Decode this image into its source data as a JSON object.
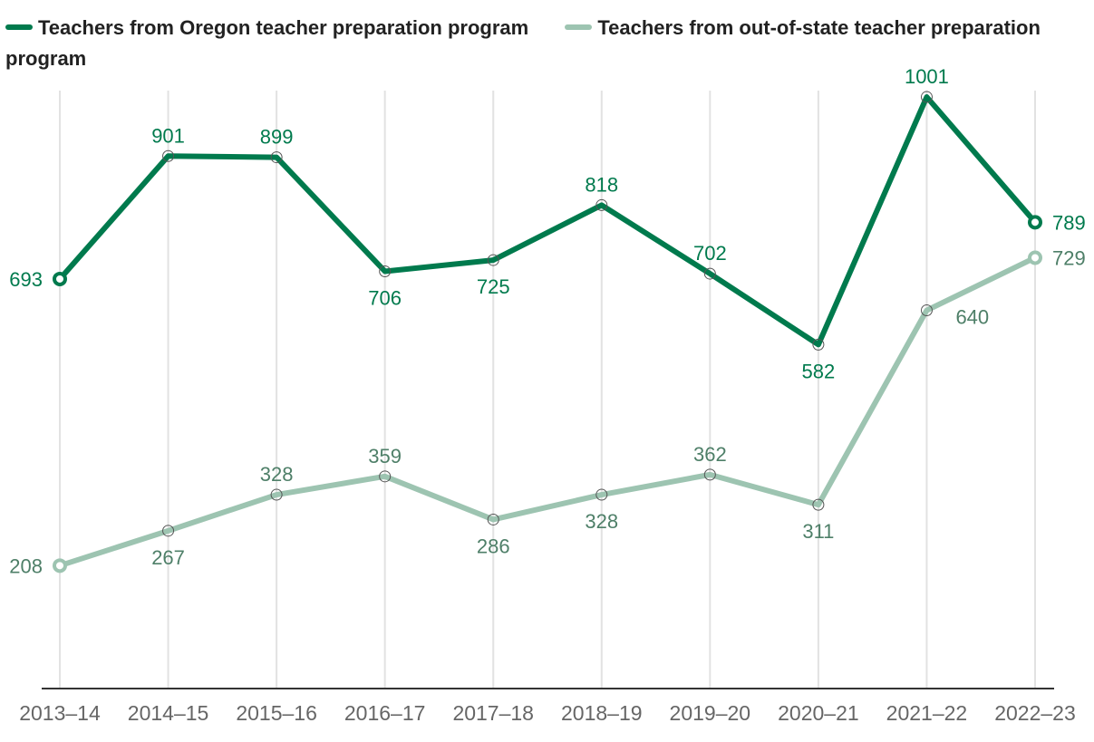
{
  "chart_data": {
    "type": "line",
    "title": "",
    "xlabel": "",
    "ylabel": "",
    "categories": [
      "2013–14",
      "2014–15",
      "2015–16",
      "2016–17",
      "2017–18",
      "2018–19",
      "2019–20",
      "2020–21",
      "2021–22",
      "2022–23"
    ],
    "ylim": [
      0,
      1100
    ],
    "grid": "vertical",
    "legend_position": "top-left",
    "series": [
      {
        "name": "Teachers from Oregon teacher preparation program",
        "color": "#007a4d",
        "label_color": "#007a4d",
        "values": [
          693,
          901,
          899,
          706,
          725,
          818,
          702,
          582,
          1001,
          789
        ],
        "label_positions": [
          "left",
          "above",
          "above",
          "below",
          "below",
          "above",
          "above",
          "below",
          "above",
          "right"
        ]
      },
      {
        "name": "Teachers from out-of-state teacher preparation program",
        "color": "#9dc4b1",
        "label_color": "#4e7f68",
        "values": [
          208,
          267,
          328,
          359,
          286,
          328,
          362,
          311,
          640,
          729
        ],
        "label_positions": [
          "left",
          "below",
          "above",
          "above",
          "below",
          "below",
          "above",
          "below",
          "below-right",
          "right"
        ]
      }
    ]
  }
}
